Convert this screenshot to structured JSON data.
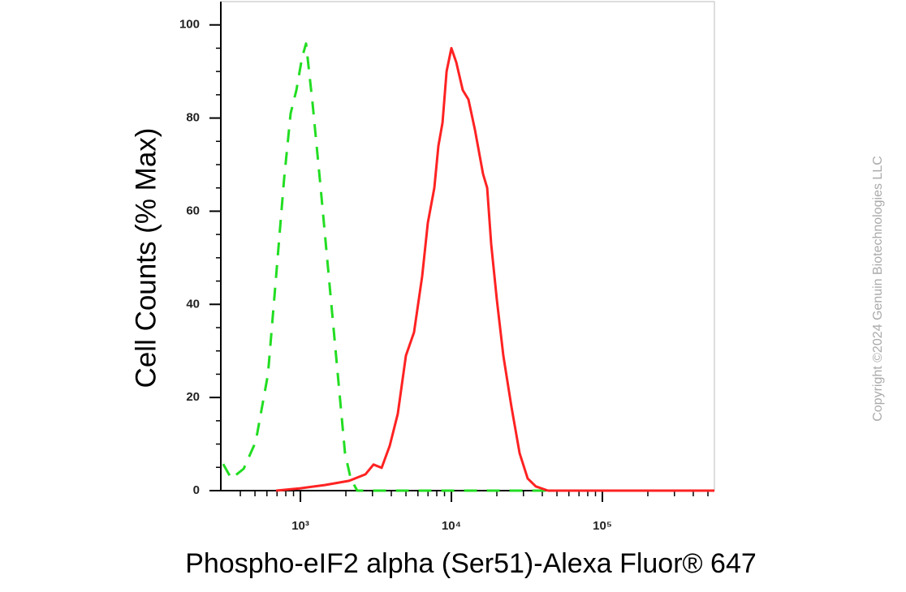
{
  "chart_data": {
    "type": "line",
    "x_scale": "log",
    "xlabel": "Phospho-eIF2 alpha (Ser51)-Alexa Fluor® 647",
    "ylabel": "Cell Counts (% Max)",
    "annotation": "Copyright ©2024 Genuin Biotechnologies LLC",
    "xlim": [
      297,
      552000
    ],
    "ylim": [
      0,
      105
    ],
    "xticks": [
      {
        "value": 1000,
        "label": "10³"
      },
      {
        "value": 10000,
        "label": "10⁴"
      },
      {
        "value": 100000,
        "label": "10⁵"
      }
    ],
    "xminorticks": [
      400,
      500,
      600,
      700,
      800,
      900,
      2000,
      3000,
      4000,
      5000,
      6000,
      7000,
      8000,
      9000,
      20000,
      30000,
      40000,
      50000,
      60000,
      70000,
      80000,
      90000,
      200000,
      300000,
      400000,
      500000
    ],
    "yticks": [
      0,
      20,
      40,
      60,
      80,
      100
    ],
    "yminorticks": [
      5,
      10,
      15,
      25,
      30,
      35,
      45,
      50,
      55,
      65,
      70,
      75,
      85,
      90,
      95
    ],
    "series": [
      {
        "color": "#22dd22",
        "dash": true,
        "x": [
          308,
          349,
          421,
          506,
          610,
          690,
          780,
          861,
          940,
          1025,
          1090,
          1204,
          1362,
          1541,
          1745,
          1975,
          2154,
          2376,
          20000,
          552000
        ],
        "values": [
          5.7,
          2.6,
          4.7,
          10.5,
          25,
          46,
          67,
          81,
          86,
          93,
          96,
          83,
          65,
          46,
          27,
          8,
          2.6,
          0,
          0,
          0
        ]
      },
      {
        "color": "#ff2222",
        "dash": false,
        "x": [
          690,
          1000,
          1449,
          2103,
          2694,
          3049,
          3450,
          3902,
          4416,
          4998,
          5657,
          6398,
          6982,
          7709,
          8204,
          8730,
          9290,
          10000,
          10771,
          11893,
          12963,
          14310,
          16206,
          17250,
          18336,
          20000,
          22080,
          24990,
          28300,
          32000,
          36240,
          43650,
          552000
        ],
        "values": [
          0,
          0.5,
          1.2,
          2.1,
          3.5,
          5.6,
          4.9,
          9.6,
          16.5,
          29,
          34,
          46,
          57.5,
          65,
          74,
          79,
          90,
          95,
          92,
          86,
          84,
          77.5,
          68,
          65,
          53,
          41,
          29,
          18,
          8,
          2.6,
          0.9,
          0,
          0
        ]
      }
    ]
  }
}
